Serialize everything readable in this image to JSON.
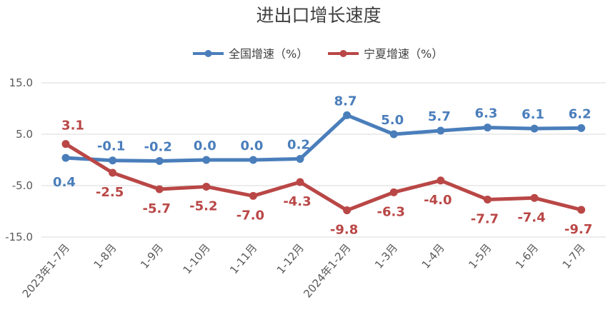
{
  "chart_data": {
    "type": "line",
    "title": "进出口增长速度",
    "categories": [
      "2023年1-7月",
      "1-8月",
      "1-9月",
      "1-10月",
      "1-11月",
      "1-12月",
      "2024年1-2月",
      "1-3月",
      "1-4月",
      "1-5月",
      "1-6月",
      "1-7月"
    ],
    "ylim": [
      -15,
      15
    ],
    "yticks": [
      "15.0",
      "5.0",
      "-5.0",
      "-15.0"
    ],
    "ytick_values": [
      15,
      5,
      -5,
      -15
    ],
    "grid": true,
    "legend_position": "top-center",
    "series": [
      {
        "name": "全国增速（%）",
        "color": "#4a7ebb",
        "values": [
          0.4,
          -0.1,
          -0.2,
          0.0,
          0.0,
          0.2,
          8.7,
          5.0,
          5.7,
          6.3,
          6.1,
          6.2
        ],
        "labels": [
          "0.4",
          "-0.1",
          "-0.2",
          "0.0",
          "0.0",
          "0.2",
          "8.7",
          "5.0",
          "5.7",
          "6.3",
          "6.1",
          "6.2"
        ]
      },
      {
        "name": "宁夏增速（%）",
        "color": "#b94746",
        "values": [
          3.1,
          -2.5,
          -5.7,
          -5.2,
          -7.0,
          -4.3,
          -9.8,
          -6.3,
          -4.0,
          -7.7,
          -7.4,
          -9.7
        ],
        "labels": [
          "3.1",
          "-2.5",
          "-5.7",
          "-5.2",
          "-7.0",
          "-4.3",
          "-9.8",
          "-6.3",
          "-4.0",
          "-7.7",
          "-7.4",
          "-9.7"
        ]
      }
    ]
  }
}
